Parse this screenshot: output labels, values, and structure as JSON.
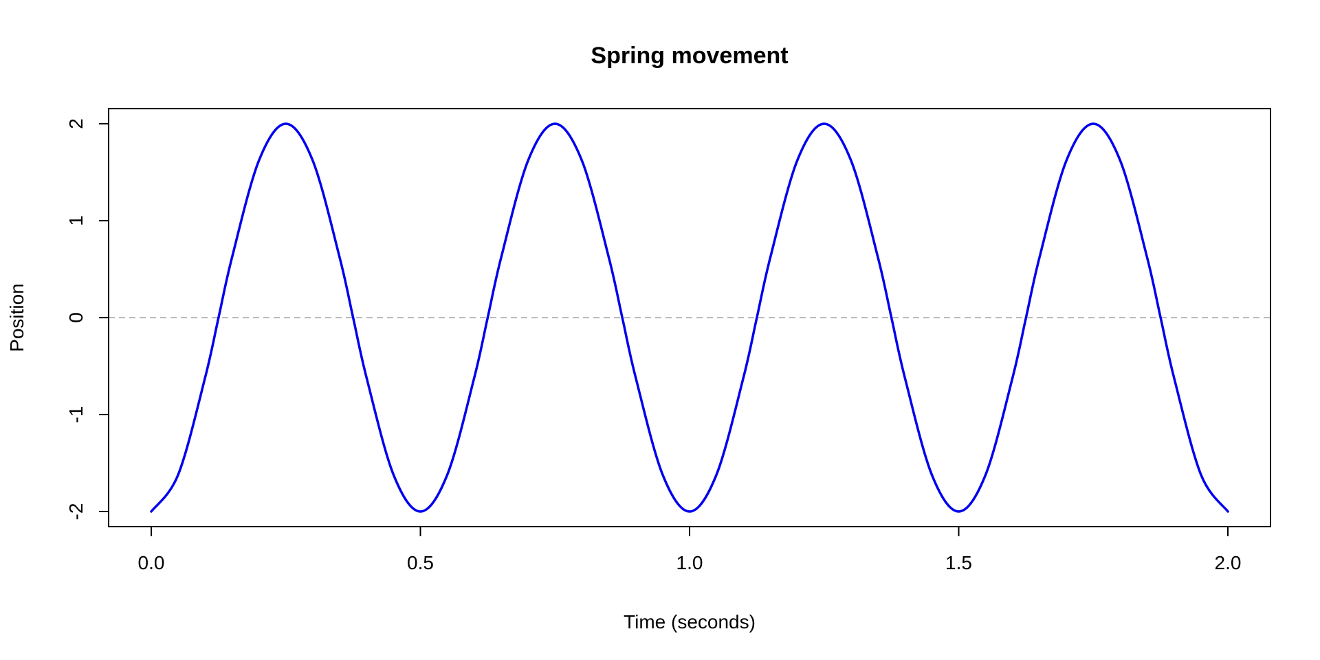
{
  "chart_data": {
    "type": "line",
    "title": "Spring movement",
    "xlabel": "Time (seconds)",
    "ylabel": "Position",
    "xlim": [
      0,
      2
    ],
    "ylim": [
      -2,
      2
    ],
    "x_ticks": [
      "0.0",
      "0.5",
      "1.0",
      "1.5",
      "2.0"
    ],
    "y_ticks": [
      "-2",
      "-1",
      "0",
      "1",
      "2"
    ],
    "series": [
      {
        "color": "#0000ee",
        "x": [
          0,
          0.05,
          0.1,
          0.125,
          0.15,
          0.2,
          0.25,
          0.3,
          0.35,
          0.375,
          0.4,
          0.45,
          0.5,
          0.55,
          0.6,
          0.625,
          0.65,
          0.7,
          0.75,
          0.8,
          0.85,
          0.875,
          0.9,
          0.95,
          1.0,
          1.05,
          1.1,
          1.125,
          1.15,
          1.2,
          1.25,
          1.3,
          1.35,
          1.375,
          1.4,
          1.45,
          1.5,
          1.55,
          1.6,
          1.625,
          1.65,
          1.7,
          1.75,
          1.8,
          1.85,
          1.875,
          1.9,
          1.95,
          2.0
        ],
        "y": [
          -2,
          -1.62,
          -0.62,
          0,
          0.62,
          1.62,
          2,
          1.62,
          0.62,
          0,
          -0.62,
          -1.62,
          -2,
          -1.62,
          -0.62,
          0,
          0.62,
          1.62,
          2,
          1.62,
          0.62,
          0,
          -0.62,
          -1.62,
          -2,
          -1.62,
          -0.62,
          0,
          0.62,
          1.62,
          2,
          1.62,
          0.62,
          0,
          -0.62,
          -1.62,
          -2,
          -1.62,
          -0.62,
          0,
          0.62,
          1.62,
          2,
          1.62,
          0.62,
          0,
          -0.62,
          -1.62,
          -2
        ]
      }
    ],
    "reference_line": {
      "y": 0,
      "style": "dashed",
      "color": "#bbbbbb"
    },
    "grid": false,
    "legend": "none"
  }
}
